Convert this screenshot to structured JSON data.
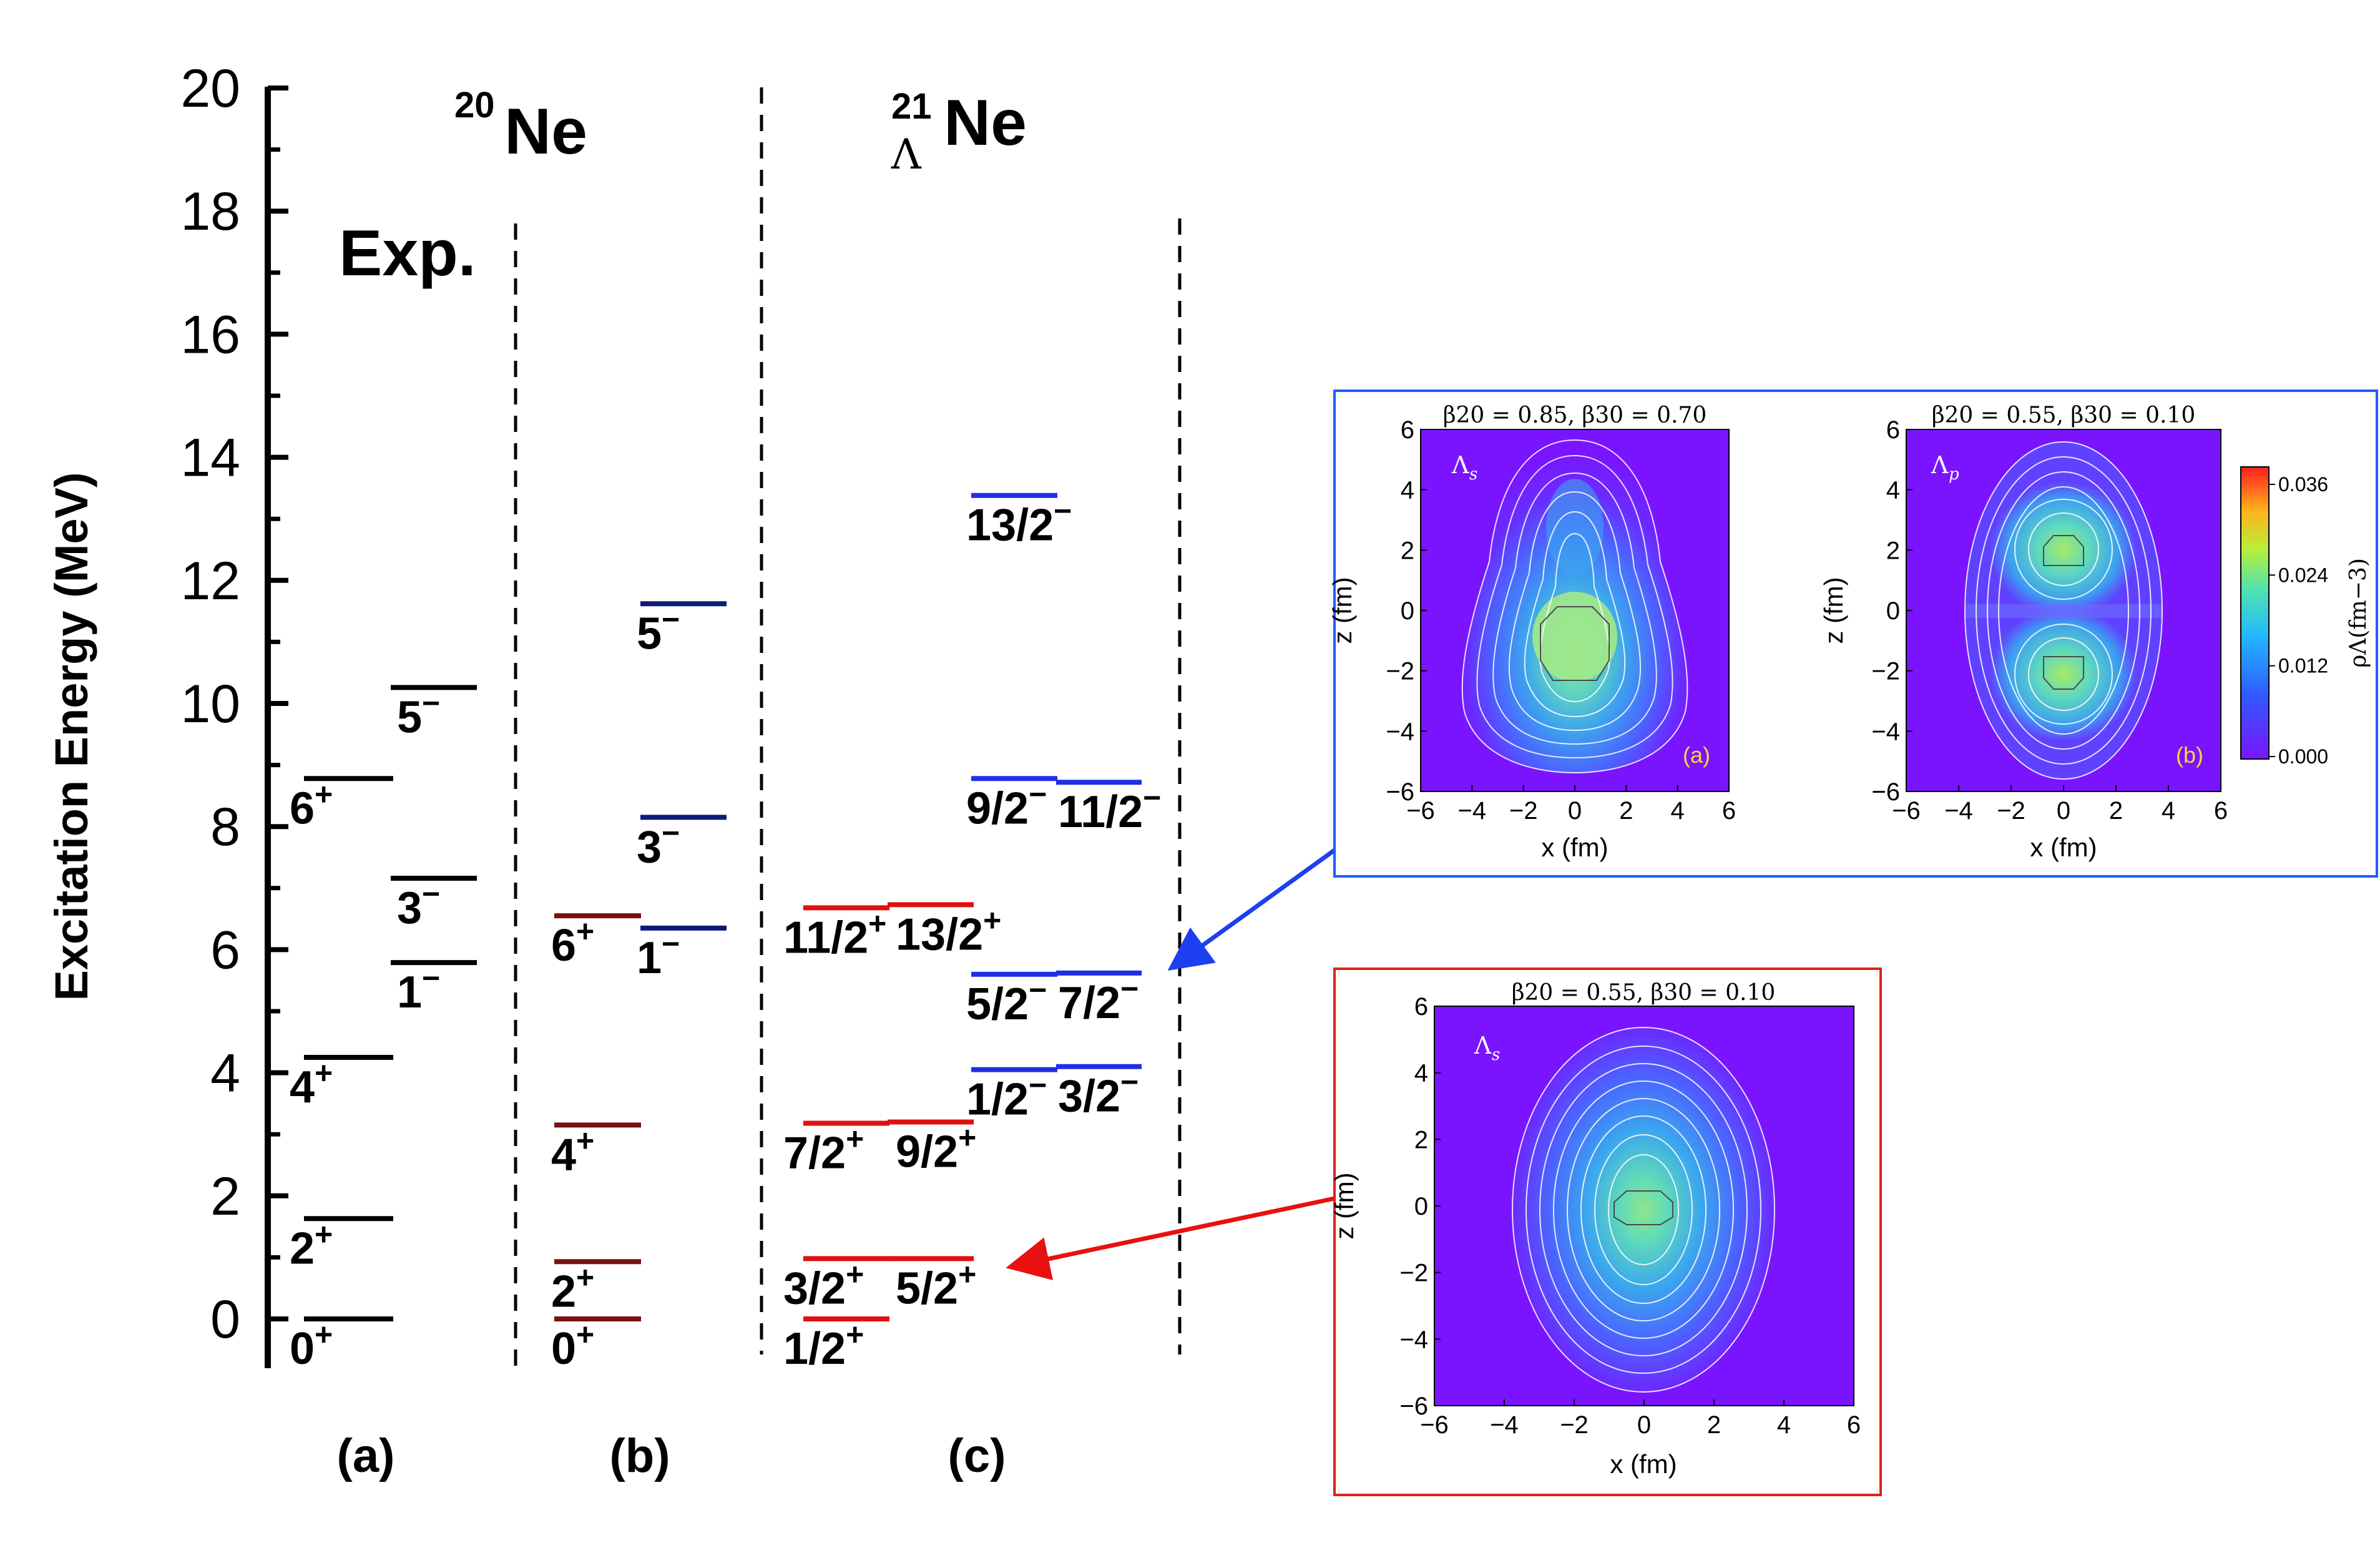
{
  "chart_data": {
    "type": "level_scheme",
    "ylabel": "Excitation Energy (MeV)",
    "ylim": [
      -0.8,
      20
    ],
    "yticks": [
      0,
      2,
      4,
      6,
      8,
      10,
      12,
      14,
      16,
      18,
      20
    ],
    "yticks_minor": [
      1,
      3,
      5,
      7,
      9,
      11,
      13,
      15,
      17,
      19
    ],
    "nucleus_20": {
      "mass": "20",
      "symbol": "Ne"
    },
    "nucleus_21": {
      "mass": "21",
      "sub": "Λ",
      "symbol": "Ne"
    },
    "exp_label": "Exp.",
    "panel_labels": [
      "(a)",
      "(b)",
      "(c)"
    ],
    "panels": [
      {
        "id": "a",
        "columns": [
          {
            "levels": [
              {
                "E": 0.0,
                "color": "#000000",
                "spin": "0",
                "parity": "+"
              },
              {
                "E": 1.63,
                "color": "#000000",
                "spin": "2",
                "parity": "+"
              },
              {
                "E": 4.25,
                "color": "#000000",
                "spin": "4",
                "parity": "+"
              },
              {
                "E": 8.78,
                "color": "#000000",
                "spin": "6",
                "parity": "+"
              }
            ]
          },
          {
            "levels": [
              {
                "E": 5.79,
                "color": "#000000",
                "spin": "1",
                "parity": "−"
              },
              {
                "E": 7.16,
                "color": "#000000",
                "spin": "3",
                "parity": "−"
              },
              {
                "E": 10.26,
                "color": "#000000",
                "spin": "5",
                "parity": "−"
              }
            ]
          }
        ]
      },
      {
        "id": "b",
        "columns": [
          {
            "levels": [
              {
                "E": 0.0,
                "color": "#7a1010",
                "spin": "0",
                "parity": "+"
              },
              {
                "E": 0.93,
                "color": "#7a1010",
                "spin": "2",
                "parity": "+"
              },
              {
                "E": 3.15,
                "color": "#7a1010",
                "spin": "4",
                "parity": "+"
              },
              {
                "E": 6.55,
                "color": "#7a1010",
                "spin": "6",
                "parity": "+"
              }
            ]
          },
          {
            "levels": [
              {
                "E": 6.35,
                "color": "#0d1a7a",
                "spin": "1",
                "parity": "−"
              },
              {
                "E": 8.15,
                "color": "#0d1a7a",
                "spin": "3",
                "parity": "−"
              },
              {
                "E": 11.62,
                "color": "#0d1a7a",
                "spin": "5",
                "parity": "−"
              }
            ]
          }
        ]
      },
      {
        "id": "c",
        "columns": [
          {
            "levels": [
              {
                "E": 0.0,
                "color": "#e01010",
                "spin": "1/2",
                "parity": "+"
              },
              {
                "E": 0.98,
                "color": "#e01010",
                "spin": "3/2",
                "parity": "+"
              },
              {
                "E": 3.18,
                "color": "#e01010",
                "spin": "7/2",
                "parity": "+"
              },
              {
                "E": 6.68,
                "color": "#e01010",
                "spin": "11/2",
                "parity": "+"
              }
            ]
          },
          {
            "levels": [
              {
                "E": 0.98,
                "color": "#e01010",
                "spin": "5/2",
                "parity": "+"
              },
              {
                "E": 3.2,
                "color": "#e01010",
                "spin": "9/2",
                "parity": "+"
              },
              {
                "E": 6.73,
                "color": "#e01010",
                "spin": "13/2",
                "parity": "+"
              }
            ]
          },
          {
            "levels": [
              {
                "E": 4.05,
                "color": "#1f2ee6",
                "spin": "1/2",
                "parity": "−"
              },
              {
                "E": 5.6,
                "color": "#1f2ee6",
                "spin": "5/2",
                "parity": "−"
              },
              {
                "E": 8.78,
                "color": "#1f2ee6",
                "spin": "9/2",
                "parity": "−"
              },
              {
                "E": 13.38,
                "color": "#1f2ee6",
                "spin": "13/2",
                "parity": "−"
              }
            ]
          },
          {
            "levels": [
              {
                "E": 4.1,
                "color": "#1f2ee6",
                "spin": "3/2",
                "parity": "−"
              },
              {
                "E": 5.62,
                "color": "#1f2ee6",
                "spin": "7/2",
                "parity": "−"
              },
              {
                "E": 8.72,
                "color": "#1f2ee6",
                "spin": "11/2",
                "parity": "−"
              }
            ]
          }
        ]
      }
    ],
    "density_plots": [
      {
        "frame": "blue",
        "subplots": [
          {
            "title": "β20 = 0.85, β30 = 0.70",
            "state": "Λ",
            "state_sub": "s",
            "tag": "(a)"
          },
          {
            "title": "β20 = 0.55, β30 = 0.10",
            "state": "Λ",
            "state_sub": "p",
            "tag": "(b)"
          }
        ],
        "colorbar": {
          "ticks": [
            "0.036",
            "0.024",
            "0.012",
            "0.000"
          ],
          "label": "ρΛ(fm−3)",
          "range": [
            0,
            0.036
          ]
        },
        "arrow_to_E": 5.6
      },
      {
        "frame": "red",
        "subplots": [
          {
            "title": "β20 = 0.55, β30 = 0.10",
            "state": "Λ",
            "state_sub": "s",
            "tag": ""
          }
        ],
        "arrow_to_E": 0.98
      }
    ],
    "density_axes": {
      "xlabel": "x (fm)",
      "ylabel": "z (fm)",
      "xlim": [
        -6,
        6
      ],
      "ylim": [
        -6,
        6
      ],
      "ticks": [
        "−6",
        "−4",
        "−2",
        "0",
        "2",
        "4",
        "6"
      ]
    },
    "colors": {
      "frame_blue": "#1f5cff",
      "frame_red": "#e02020",
      "plot_bg": "#7a14ff",
      "arrow_blue": "#1c3ff0",
      "arrow_red": "#e81010"
    }
  }
}
